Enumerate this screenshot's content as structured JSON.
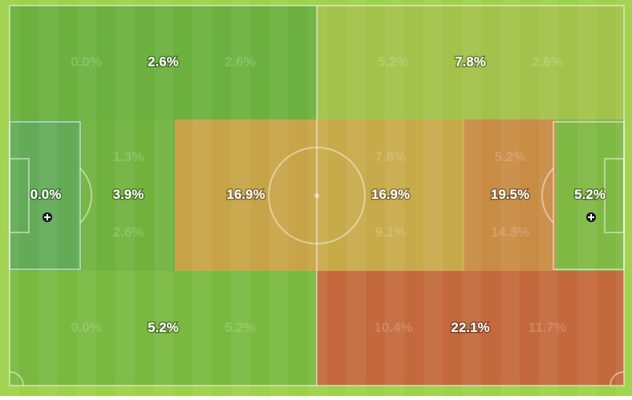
{
  "zones": [
    {
      "main": "2.6%",
      "sub": [
        "0.0%",
        "2.6%"
      ]
    },
    {
      "main": "7.8%",
      "sub": [
        "5.2%",
        "2.6%"
      ]
    },
    {
      "main": "0.0%",
      "sub": []
    },
    {
      "main": "3.9%",
      "sub": [
        "1.3%",
        "2.6%"
      ]
    },
    {
      "main": "16.9%",
      "sub": []
    },
    {
      "main": "16.9%",
      "sub": [
        "7.8%",
        "9.1%"
      ]
    },
    {
      "main": "19.5%",
      "sub": [
        "5.2%",
        "14.3%"
      ]
    },
    {
      "main": "5.2%",
      "sub": []
    },
    {
      "main": "5.2%",
      "sub": [
        "0.0%",
        "5.2%"
      ]
    },
    {
      "main": "22.1%",
      "sub": [
        "10.4%",
        "11.7%"
      ]
    }
  ]
}
